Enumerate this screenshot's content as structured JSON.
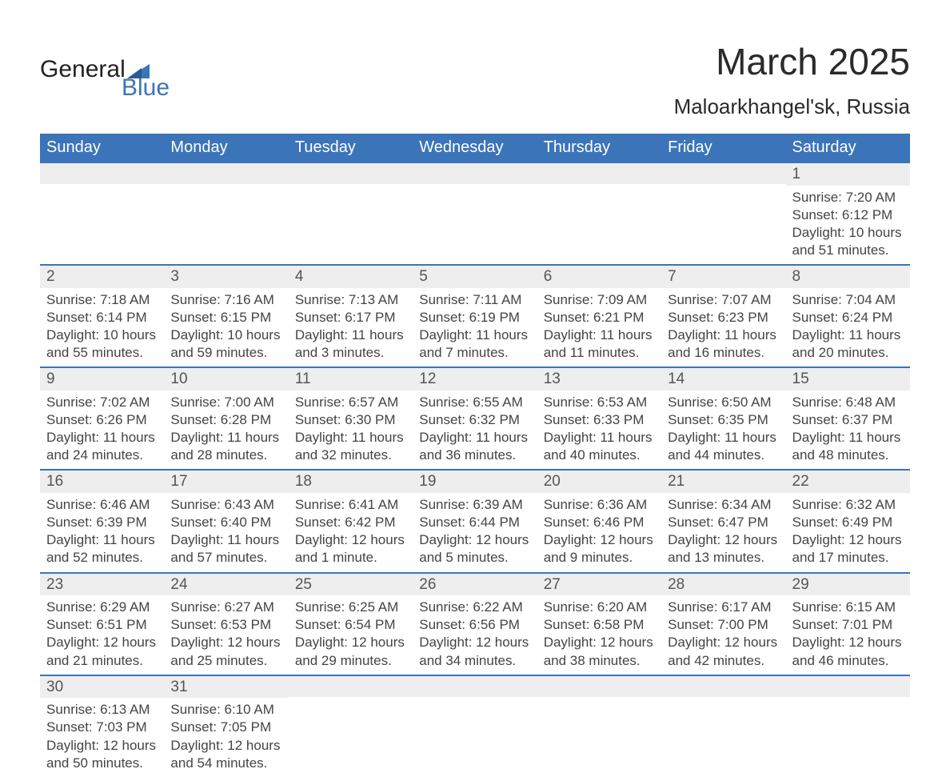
{
  "logo": {
    "word1": "General",
    "word2": "Blue",
    "triangle_color": "#3b74b9"
  },
  "title": {
    "month": "March 2025",
    "location": "Maloarkhangel'sk, Russia",
    "month_fontsize": 46,
    "loc_fontsize": 26,
    "text_color": "#2a2a2a"
  },
  "calendar": {
    "header_bg": "#3b74b9",
    "header_text_color": "#ffffff",
    "row_sep_color": "#3b74b9",
    "daynum_bg": "#eeeeee",
    "daynum_color": "#555555",
    "body_text_color": "#444444",
    "days_of_week": [
      "Sunday",
      "Monday",
      "Tuesday",
      "Wednesday",
      "Thursday",
      "Friday",
      "Saturday"
    ],
    "weeks": [
      [
        null,
        null,
        null,
        null,
        null,
        null,
        {
          "n": "1",
          "sunrise": "7:20 AM",
          "sunset": "6:12 PM",
          "daylight": "10 hours and 51 minutes."
        }
      ],
      [
        {
          "n": "2",
          "sunrise": "7:18 AM",
          "sunset": "6:14 PM",
          "daylight": "10 hours and 55 minutes."
        },
        {
          "n": "3",
          "sunrise": "7:16 AM",
          "sunset": "6:15 PM",
          "daylight": "10 hours and 59 minutes."
        },
        {
          "n": "4",
          "sunrise": "7:13 AM",
          "sunset": "6:17 PM",
          "daylight": "11 hours and 3 minutes."
        },
        {
          "n": "5",
          "sunrise": "7:11 AM",
          "sunset": "6:19 PM",
          "daylight": "11 hours and 7 minutes."
        },
        {
          "n": "6",
          "sunrise": "7:09 AM",
          "sunset": "6:21 PM",
          "daylight": "11 hours and 11 minutes."
        },
        {
          "n": "7",
          "sunrise": "7:07 AM",
          "sunset": "6:23 PM",
          "daylight": "11 hours and 16 minutes."
        },
        {
          "n": "8",
          "sunrise": "7:04 AM",
          "sunset": "6:24 PM",
          "daylight": "11 hours and 20 minutes."
        }
      ],
      [
        {
          "n": "9",
          "sunrise": "7:02 AM",
          "sunset": "6:26 PM",
          "daylight": "11 hours and 24 minutes."
        },
        {
          "n": "10",
          "sunrise": "7:00 AM",
          "sunset": "6:28 PM",
          "daylight": "11 hours and 28 minutes."
        },
        {
          "n": "11",
          "sunrise": "6:57 AM",
          "sunset": "6:30 PM",
          "daylight": "11 hours and 32 minutes."
        },
        {
          "n": "12",
          "sunrise": "6:55 AM",
          "sunset": "6:32 PM",
          "daylight": "11 hours and 36 minutes."
        },
        {
          "n": "13",
          "sunrise": "6:53 AM",
          "sunset": "6:33 PM",
          "daylight": "11 hours and 40 minutes."
        },
        {
          "n": "14",
          "sunrise": "6:50 AM",
          "sunset": "6:35 PM",
          "daylight": "11 hours and 44 minutes."
        },
        {
          "n": "15",
          "sunrise": "6:48 AM",
          "sunset": "6:37 PM",
          "daylight": "11 hours and 48 minutes."
        }
      ],
      [
        {
          "n": "16",
          "sunrise": "6:46 AM",
          "sunset": "6:39 PM",
          "daylight": "11 hours and 52 minutes."
        },
        {
          "n": "17",
          "sunrise": "6:43 AM",
          "sunset": "6:40 PM",
          "daylight": "11 hours and 57 minutes."
        },
        {
          "n": "18",
          "sunrise": "6:41 AM",
          "sunset": "6:42 PM",
          "daylight": "12 hours and 1 minute."
        },
        {
          "n": "19",
          "sunrise": "6:39 AM",
          "sunset": "6:44 PM",
          "daylight": "12 hours and 5 minutes."
        },
        {
          "n": "20",
          "sunrise": "6:36 AM",
          "sunset": "6:46 PM",
          "daylight": "12 hours and 9 minutes."
        },
        {
          "n": "21",
          "sunrise": "6:34 AM",
          "sunset": "6:47 PM",
          "daylight": "12 hours and 13 minutes."
        },
        {
          "n": "22",
          "sunrise": "6:32 AM",
          "sunset": "6:49 PM",
          "daylight": "12 hours and 17 minutes."
        }
      ],
      [
        {
          "n": "23",
          "sunrise": "6:29 AM",
          "sunset": "6:51 PM",
          "daylight": "12 hours and 21 minutes."
        },
        {
          "n": "24",
          "sunrise": "6:27 AM",
          "sunset": "6:53 PM",
          "daylight": "12 hours and 25 minutes."
        },
        {
          "n": "25",
          "sunrise": "6:25 AM",
          "sunset": "6:54 PM",
          "daylight": "12 hours and 29 minutes."
        },
        {
          "n": "26",
          "sunrise": "6:22 AM",
          "sunset": "6:56 PM",
          "daylight": "12 hours and 34 minutes."
        },
        {
          "n": "27",
          "sunrise": "6:20 AM",
          "sunset": "6:58 PM",
          "daylight": "12 hours and 38 minutes."
        },
        {
          "n": "28",
          "sunrise": "6:17 AM",
          "sunset": "7:00 PM",
          "daylight": "12 hours and 42 minutes."
        },
        {
          "n": "29",
          "sunrise": "6:15 AM",
          "sunset": "7:01 PM",
          "daylight": "12 hours and 46 minutes."
        }
      ],
      [
        {
          "n": "30",
          "sunrise": "6:13 AM",
          "sunset": "7:03 PM",
          "daylight": "12 hours and 50 minutes."
        },
        {
          "n": "31",
          "sunrise": "6:10 AM",
          "sunset": "7:05 PM",
          "daylight": "12 hours and 54 minutes."
        },
        null,
        null,
        null,
        null,
        null
      ]
    ],
    "labels": {
      "sunrise": "Sunrise: ",
      "sunset": "Sunset: ",
      "daylight": "Daylight: "
    }
  }
}
